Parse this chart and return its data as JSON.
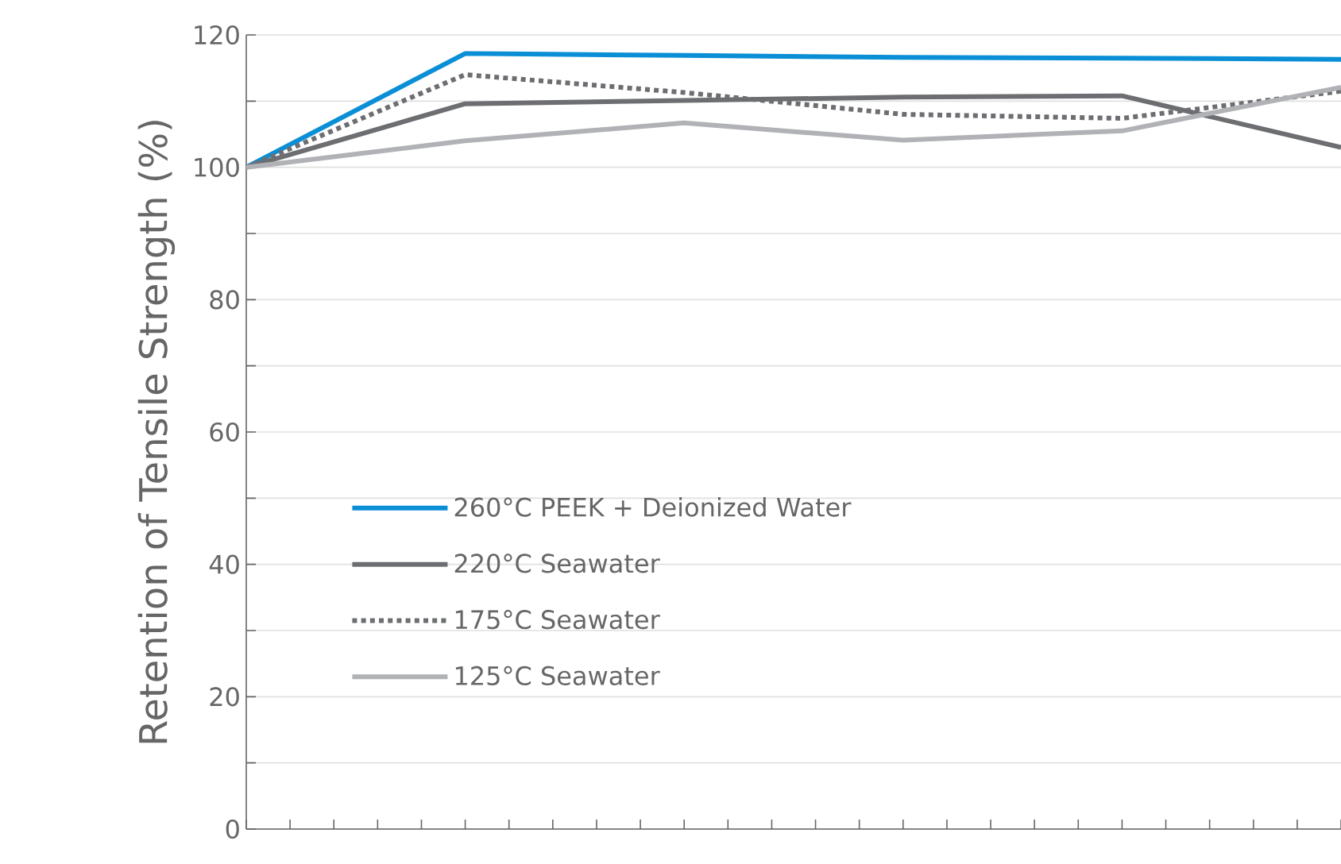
{
  "chart_data": {
    "type": "line",
    "ylabel": "Retention of Tensile Strength (%)",
    "categories": [
      null,
      null,
      null,
      null,
      null,
      null
    ],
    "ylim": [
      0,
      120
    ],
    "yticks": [
      0,
      {
        "value": 10,
        "label": null
      },
      20,
      {
        "value": 30,
        "label": null
      },
      40,
      {
        "value": 50,
        "label": null
      },
      60,
      {
        "value": 70,
        "label": null
      },
      80,
      {
        "value": 90,
        "label": null
      },
      100,
      {
        "value": 110,
        "label": null
      },
      120
    ],
    "grid": "y",
    "legend": "center",
    "marker": "none",
    "series": [
      {
        "name": "260°C PEEK + Deionized Water",
        "color": "#0a8fd6",
        "line_style": "solid",
        "values": [
          100,
          117.2,
          116.9,
          116.6,
          116.5,
          116.3
        ]
      },
      {
        "name": "220°C Seawater",
        "color": "#6d6e71",
        "line_style": "solid",
        "values": [
          100,
          109.6,
          110.1,
          110.6,
          110.8,
          103.0
        ]
      },
      {
        "name": "175°C Seawater",
        "color": "#6d6e71",
        "line_style": "dotted",
        "values": [
          100,
          114.0,
          111.3,
          108.0,
          107.4,
          111.5
        ]
      },
      {
        "name": "125°C Seawater",
        "color": "#b1b2b6",
        "line_style": "solid",
        "values": [
          100,
          104.0,
          106.7,
          104.1,
          105.5,
          112.1
        ]
      }
    ]
  }
}
